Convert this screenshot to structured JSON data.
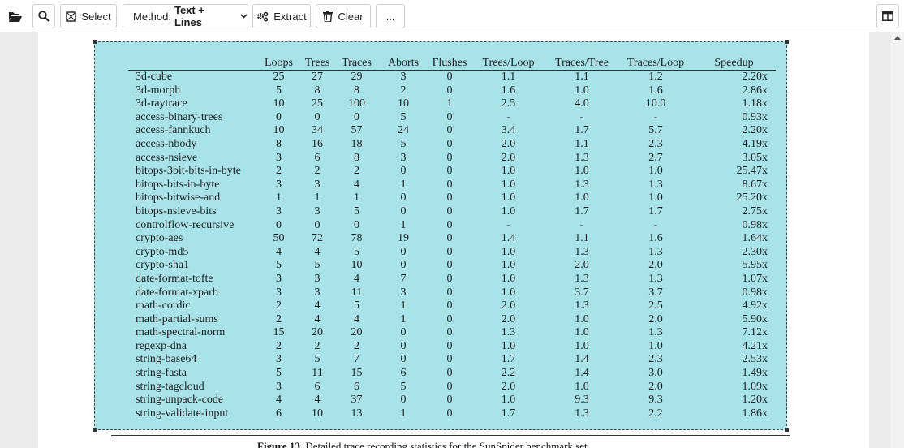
{
  "toolbar": {
    "select_label": "Select",
    "method_label": "Method:",
    "method_value": "Text + Lines",
    "extract_label": "Extract",
    "clear_label": "Clear",
    "more_label": "..."
  },
  "icons": {
    "open": "folder-open-icon",
    "search": "search-icon",
    "select": "select-region-icon",
    "extract": "gears-icon",
    "clear": "trash-icon",
    "panel": "sidebar-panel-icon"
  },
  "colors": {
    "selection": "#a8e3ea"
  },
  "table": {
    "headers": [
      "",
      "Loops",
      "Trees",
      "Traces",
      "Aborts",
      "Flushes",
      "Trees/Loop",
      "Traces/Tree",
      "Traces/Loop",
      "Speedup"
    ],
    "rows": [
      [
        "3d-cube",
        "25",
        "27",
        "29",
        "3",
        "0",
        "1.1",
        "1.1",
        "1.2",
        "2.20x"
      ],
      [
        "3d-morph",
        "5",
        "8",
        "8",
        "2",
        "0",
        "1.6",
        "1.0",
        "1.6",
        "2.86x"
      ],
      [
        "3d-raytrace",
        "10",
        "25",
        "100",
        "10",
        "1",
        "2.5",
        "4.0",
        "10.0",
        "1.18x"
      ],
      [
        "access-binary-trees",
        "0",
        "0",
        "0",
        "5",
        "0",
        "-",
        "-",
        "-",
        "0.93x"
      ],
      [
        "access-fannkuch",
        "10",
        "34",
        "57",
        "24",
        "0",
        "3.4",
        "1.7",
        "5.7",
        "2.20x"
      ],
      [
        "access-nbody",
        "8",
        "16",
        "18",
        "5",
        "0",
        "2.0",
        "1.1",
        "2.3",
        "4.19x"
      ],
      [
        "access-nsieve",
        "3",
        "6",
        "8",
        "3",
        "0",
        "2.0",
        "1.3",
        "2.7",
        "3.05x"
      ],
      [
        "bitops-3bit-bits-in-byte",
        "2",
        "2",
        "2",
        "0",
        "0",
        "1.0",
        "1.0",
        "1.0",
        "25.47x"
      ],
      [
        "bitops-bits-in-byte",
        "3",
        "3",
        "4",
        "1",
        "0",
        "1.0",
        "1.3",
        "1.3",
        "8.67x"
      ],
      [
        "bitops-bitwise-and",
        "1",
        "1",
        "1",
        "0",
        "0",
        "1.0",
        "1.0",
        "1.0",
        "25.20x"
      ],
      [
        "bitops-nsieve-bits",
        "3",
        "3",
        "5",
        "0",
        "0",
        "1.0",
        "1.7",
        "1.7",
        "2.75x"
      ],
      [
        "controlflow-recursive",
        "0",
        "0",
        "0",
        "1",
        "0",
        "-",
        "-",
        "-",
        "0.98x"
      ],
      [
        "crypto-aes",
        "50",
        "72",
        "78",
        "19",
        "0",
        "1.4",
        "1.1",
        "1.6",
        "1.64x"
      ],
      [
        "crypto-md5",
        "4",
        "4",
        "5",
        "0",
        "0",
        "1.0",
        "1.3",
        "1.3",
        "2.30x"
      ],
      [
        "crypto-sha1",
        "5",
        "5",
        "10",
        "0",
        "0",
        "1.0",
        "2.0",
        "2.0",
        "5.95x"
      ],
      [
        "date-format-tofte",
        "3",
        "3",
        "4",
        "7",
        "0",
        "1.0",
        "1.3",
        "1.3",
        "1.07x"
      ],
      [
        "date-format-xparb",
        "3",
        "3",
        "11",
        "3",
        "0",
        "1.0",
        "3.7",
        "3.7",
        "0.98x"
      ],
      [
        "math-cordic",
        "2",
        "4",
        "5",
        "1",
        "0",
        "2.0",
        "1.3",
        "2.5",
        "4.92x"
      ],
      [
        "math-partial-sums",
        "2",
        "4",
        "4",
        "1",
        "0",
        "2.0",
        "1.0",
        "2.0",
        "5.90x"
      ],
      [
        "math-spectral-norm",
        "15",
        "20",
        "20",
        "0",
        "0",
        "1.3",
        "1.0",
        "1.3",
        "7.12x"
      ],
      [
        "regexp-dna",
        "2",
        "2",
        "2",
        "0",
        "0",
        "1.0",
        "1.0",
        "1.0",
        "4.21x"
      ],
      [
        "string-base64",
        "3",
        "5",
        "7",
        "0",
        "0",
        "1.7",
        "1.4",
        "2.3",
        "2.53x"
      ],
      [
        "string-fasta",
        "5",
        "11",
        "15",
        "6",
        "0",
        "2.2",
        "1.4",
        "3.0",
        "1.49x"
      ],
      [
        "string-tagcloud",
        "3",
        "6",
        "6",
        "5",
        "0",
        "2.0",
        "1.0",
        "2.0",
        "1.09x"
      ],
      [
        "string-unpack-code",
        "4",
        "4",
        "37",
        "0",
        "0",
        "1.0",
        "9.3",
        "9.3",
        "1.20x"
      ],
      [
        "string-validate-input",
        "6",
        "10",
        "13",
        "1",
        "0",
        "1.7",
        "1.3",
        "2.2",
        "1.86x"
      ]
    ]
  },
  "caption": {
    "label": "Figure 13.",
    "text": "Detailed trace recording statistics for the SunSpider benchmark set."
  }
}
